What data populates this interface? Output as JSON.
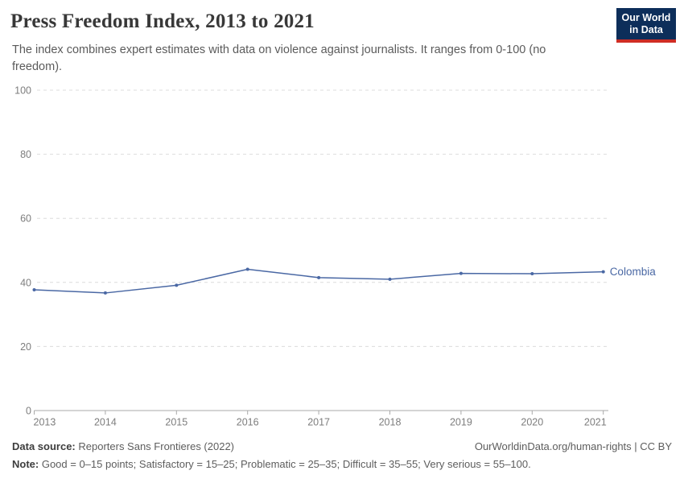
{
  "header": {
    "title": "Press Freedom Index, 2013 to 2021",
    "subtitle": "The index combines expert estimates with data on violence against journalists. It ranges from 0-100 (no freedom).",
    "logo": {
      "line1": "Our World",
      "line2": "in Data"
    }
  },
  "chart_data": {
    "type": "line",
    "title": "Press Freedom Index, 2013 to 2021",
    "x": [
      2013,
      2014,
      2015,
      2016,
      2017,
      2018,
      2019,
      2020,
      2021
    ],
    "series": [
      {
        "name": "Colombia",
        "color": "#4a68a4",
        "values": [
          37.7,
          36.7,
          39.1,
          44.1,
          41.5,
          41.0,
          42.8,
          42.7,
          43.3
        ]
      }
    ],
    "xlabel": "",
    "ylabel": "",
    "y_ticks": [
      0,
      20,
      40,
      60,
      80,
      100
    ],
    "ylim": [
      0,
      100
    ],
    "grid": "horizontal-dashed",
    "legend": "line-end-label",
    "style": {
      "grid_color": "#dcdcdc",
      "axis_color": "#a9a9a9",
      "tick_label_color": "#7d7d7d"
    }
  },
  "footer": {
    "data_source_label": "Data source:",
    "data_source_value": " Reporters Sans Frontieres (2022)",
    "link": "OurWorldinData.org/human-rights | CC BY",
    "note_label": "Note:",
    "note_value": " Good = 0–15 points; Satisfactory = 15–25; Problematic = 25–35; Difficult = 35–55; Very serious = 55–100."
  }
}
